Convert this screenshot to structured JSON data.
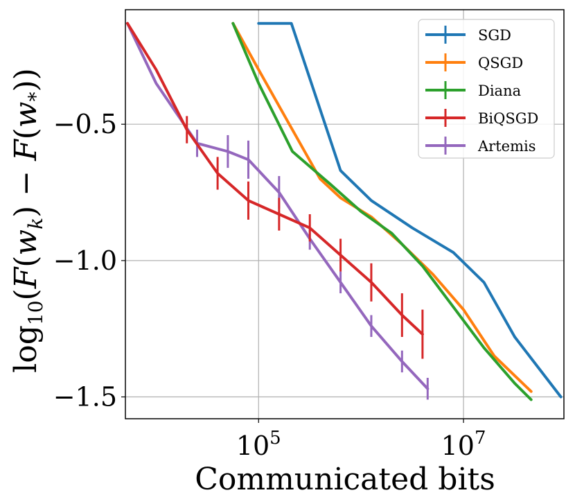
{
  "chart_data": {
    "type": "line",
    "title": "",
    "xlabel": "Communicated bits",
    "ylabel": "log10(F(w_k) − F(w_*))",
    "xscale": "log",
    "xlim_log10": [
      3.7,
      7.98
    ],
    "ylim": [
      -1.58,
      -0.08
    ],
    "grid": true,
    "legend_position": "top-right",
    "x_ticks": [
      {
        "value_log10": 5,
        "base": "10",
        "exponent": "5"
      },
      {
        "value_log10": 7,
        "base": "10",
        "exponent": "7"
      }
    ],
    "y_ticks": [
      {
        "value": -0.5,
        "label": "−0.5"
      },
      {
        "value": -1.0,
        "label": "−1.0"
      },
      {
        "value": -1.5,
        "label": "−1.5"
      }
    ],
    "series": [
      {
        "name": "SGD",
        "color": "#1f77b4",
        "x_log10": [
          5.0,
          5.32,
          5.8,
          6.1,
          6.5,
          6.9,
          7.2,
          7.5,
          7.95
        ],
        "y": [
          -0.13,
          -0.13,
          -0.67,
          -0.78,
          -0.88,
          -0.97,
          -1.08,
          -1.28,
          -1.5
        ]
      },
      {
        "name": "QSGD",
        "color": "#ff7f0e",
        "x_log10": [
          4.75,
          5.0,
          5.3,
          5.6,
          5.8,
          6.1,
          6.4,
          6.7,
          7.0,
          7.3,
          7.66
        ],
        "y": [
          -0.13,
          -0.3,
          -0.5,
          -0.7,
          -0.77,
          -0.84,
          -0.94,
          -1.05,
          -1.18,
          -1.35,
          -1.48
        ]
      },
      {
        "name": "Diana",
        "color": "#2ca02c",
        "x_log10": [
          4.75,
          5.0,
          5.33,
          5.7,
          6.0,
          6.3,
          6.6,
          6.9,
          7.2,
          7.5,
          7.66
        ],
        "y": [
          -0.13,
          -0.35,
          -0.6,
          -0.72,
          -0.82,
          -0.9,
          -1.02,
          -1.17,
          -1.32,
          -1.45,
          -1.51
        ]
      },
      {
        "name": "BiQSGD",
        "color": "#d62728",
        "x_log10": [
          3.72,
          4.0,
          4.3,
          4.6,
          4.9,
          5.2,
          5.5,
          5.8,
          6.1,
          6.4,
          6.6
        ],
        "y": [
          -0.13,
          -0.3,
          -0.52,
          -0.68,
          -0.78,
          -0.83,
          -0.88,
          -0.98,
          -1.08,
          -1.2,
          -1.27
        ],
        "error": [
          0.0,
          0.0,
          0.05,
          0.06,
          0.07,
          0.06,
          0.05,
          0.06,
          0.07,
          0.08,
          0.09
        ]
      },
      {
        "name": "Artemis",
        "color": "#9467bd",
        "x_log10": [
          3.72,
          4.0,
          4.4,
          4.7,
          4.9,
          5.2,
          5.5,
          5.8,
          6.1,
          6.4,
          6.65
        ],
        "y": [
          -0.13,
          -0.35,
          -0.57,
          -0.6,
          -0.63,
          -0.75,
          -0.92,
          -1.08,
          -1.24,
          -1.37,
          -1.47
        ],
        "error": [
          0.0,
          0.0,
          0.05,
          0.06,
          0.07,
          0.06,
          0.04,
          0.04,
          0.04,
          0.04,
          0.04
        ]
      }
    ]
  }
}
